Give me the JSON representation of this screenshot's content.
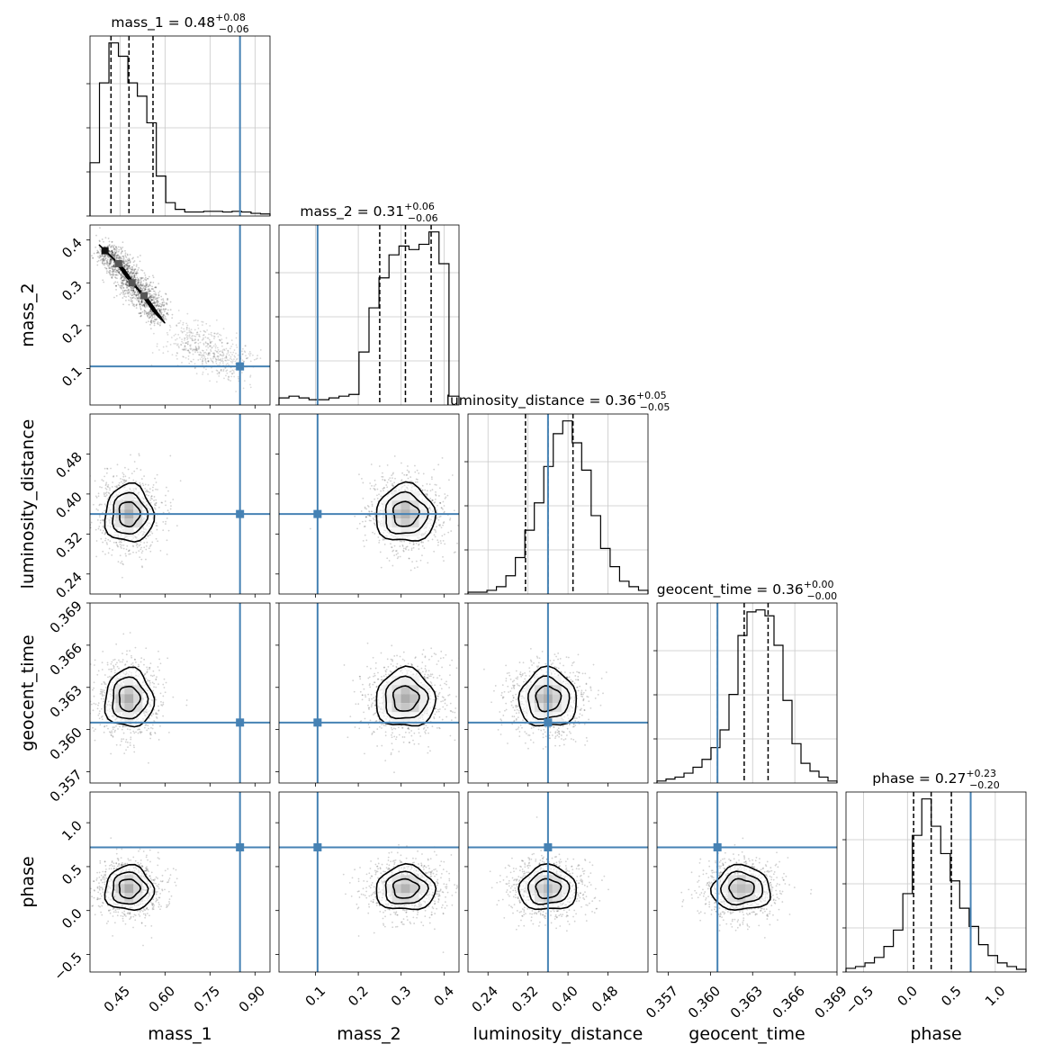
{
  "chart_data": {
    "type": "corner",
    "parameters": [
      {
        "name": "mass_1",
        "range": [
          0.35,
          0.95
        ],
        "ticks": [
          0.45,
          0.6,
          0.75,
          0.9
        ],
        "tick_labels": [
          "0.45",
          "0.60",
          "0.75",
          "0.90"
        ],
        "truth": 0.85,
        "title": {
          "text": "mass_1 = 0.48",
          "plus": "+0.08",
          "minus": "−0.06"
        },
        "quantiles": [
          0.42,
          0.48,
          0.56
        ],
        "hist": [
          4,
          10,
          13,
          12,
          10,
          9,
          7,
          3,
          1,
          0.5,
          0.3,
          0.3,
          0.35,
          0.35,
          0.3,
          0.35,
          0.3,
          0.2,
          0.15
        ],
        "grid": [
          0.45,
          0.6,
          0.75,
          0.9
        ]
      },
      {
        "name": "mass_2",
        "range": [
          0.015,
          0.435
        ],
        "ticks": [
          0.1,
          0.2,
          0.3,
          0.4
        ],
        "tick_labels": [
          "0.1",
          "0.2",
          "0.3",
          "0.4"
        ],
        "truth": 0.105,
        "title": {
          "text": "mass_2 = 0.31",
          "plus": "+0.06",
          "minus": "−0.06"
        },
        "quantiles": [
          0.25,
          0.31,
          0.37
        ],
        "hist": [
          0.4,
          0.5,
          0.4,
          0.3,
          0.3,
          0.4,
          0.5,
          0.6,
          3.0,
          5.5,
          7.2,
          8.5,
          9.0,
          8.8,
          9.1,
          9.8,
          8.0,
          0.5
        ],
        "grid": [
          0.1,
          0.2,
          0.3,
          0.4
        ]
      },
      {
        "name": "luminosity_distance",
        "range": [
          0.2,
          0.56
        ],
        "ticks": [
          0.24,
          0.32,
          0.4,
          0.48
        ],
        "tick_labels": [
          "0.24",
          "0.32",
          "0.40",
          "0.48"
        ],
        "truth": 0.36,
        "title": {
          "text": "luminosity_distance = 0.36",
          "plus": "+0.05",
          "minus": "−0.05"
        },
        "quantiles": [
          0.315,
          0.36,
          0.41
        ],
        "hist": [
          0.1,
          0.1,
          0.2,
          0.4,
          1.0,
          2.0,
          3.5,
          5.0,
          7.0,
          8.8,
          9.5,
          8.3,
          6.8,
          4.3,
          2.5,
          1.5,
          0.7,
          0.4,
          0.2
        ],
        "grid": [
          0.24,
          0.32,
          0.4,
          0.48
        ]
      },
      {
        "name": "geocent_time",
        "range": [
          0.3562,
          0.369
        ],
        "ticks": [
          0.357,
          0.36,
          0.363,
          0.366,
          0.369
        ],
        "tick_labels": [
          "0.357",
          "0.360",
          "0.363",
          "0.366",
          "0.369"
        ],
        "truth": 0.3605,
        "title": {
          "text": "geocent_time = 0.36",
          "plus": "+0.00",
          "minus": "−0.00"
        },
        "quantiles": [
          0.3605,
          0.3624,
          0.3641
        ],
        "hist": [
          0.1,
          0.2,
          0.3,
          0.5,
          0.8,
          1.2,
          1.8,
          2.7,
          4.5,
          7.5,
          8.7,
          8.8,
          8.5,
          7.0,
          4.2,
          2.0,
          1.0,
          0.6,
          0.3,
          0.1
        ],
        "grid": [
          0.36,
          0.363,
          0.366
        ]
      },
      {
        "name": "phase",
        "range": [
          -0.7,
          1.35
        ],
        "ticks": [
          -0.5,
          0.0,
          0.5,
          1.0
        ],
        "tick_labels": [
          "−0.5",
          "0.0",
          "0.5",
          "1.0"
        ],
        "truth": 0.72,
        "title": {
          "text": "phase = 0.27",
          "plus": "+0.23",
          "minus": "−0.20"
        },
        "quantiles": [
          0.07,
          0.27,
          0.5
        ],
        "hist": [
          0.2,
          0.3,
          0.5,
          0.8,
          1.4,
          2.3,
          4.3,
          7.5,
          9.5,
          8.0,
          6.5,
          5.0,
          3.5,
          2.5,
          1.5,
          0.9,
          0.5,
          0.3,
          0.15
        ],
        "grid": [
          -0.5,
          0.0,
          0.5,
          1.0
        ]
      }
    ],
    "pairs": [
      {
        "x": 0,
        "y": 1,
        "type": "banana",
        "spine": [
          [
            0.4,
            0.375
          ],
          [
            0.445,
            0.345
          ],
          [
            0.49,
            0.3
          ],
          [
            0.53,
            0.27
          ],
          [
            0.58,
            0.22
          ]
        ],
        "scatter_tail": [
          [
            0.65,
            0.18
          ],
          [
            0.85,
            0.1
          ]
        ]
      },
      {
        "x": 0,
        "y": 2,
        "center": [
          0.48,
          0.36
        ],
        "spread": [
          0.07,
          0.05
        ]
      },
      {
        "x": 1,
        "y": 2,
        "center": [
          0.31,
          0.36
        ],
        "spread": [
          0.06,
          0.05
        ]
      },
      {
        "x": 0,
        "y": 3,
        "center": [
          0.48,
          0.3622
        ],
        "spread": [
          0.07,
          0.0018
        ]
      },
      {
        "x": 1,
        "y": 3,
        "center": [
          0.31,
          0.3622
        ],
        "spread": [
          0.06,
          0.0018
        ]
      },
      {
        "x": 2,
        "y": 3,
        "center": [
          0.36,
          0.3622
        ],
        "spread": [
          0.05,
          0.0018
        ]
      },
      {
        "x": 0,
        "y": 4,
        "center": [
          0.48,
          0.25
        ],
        "spread": [
          0.07,
          0.22
        ]
      },
      {
        "x": 1,
        "y": 4,
        "center": [
          0.31,
          0.25
        ],
        "spread": [
          0.06,
          0.22
        ]
      },
      {
        "x": 2,
        "y": 4,
        "center": [
          0.36,
          0.25
        ],
        "spread": [
          0.05,
          0.22
        ]
      },
      {
        "x": 3,
        "y": 4,
        "center": [
          0.3622,
          0.25
        ],
        "spread": [
          0.0018,
          0.22
        ]
      }
    ],
    "truth_color": "#4682b4",
    "grid": true
  }
}
